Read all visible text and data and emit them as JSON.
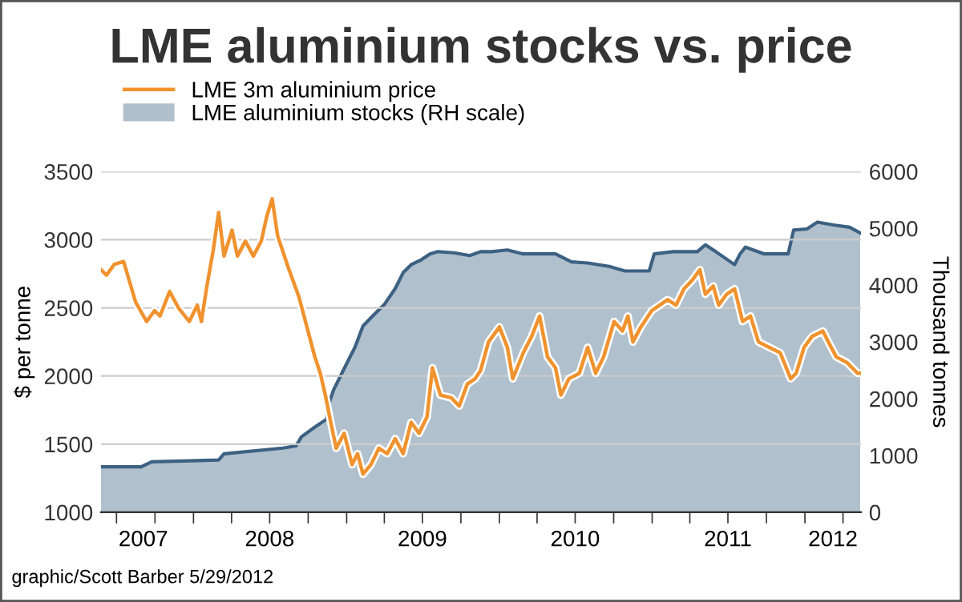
{
  "chart_data": {
    "type": "line",
    "title": "LME aluminium stocks vs. price",
    "ylabel": "$ per tonne",
    "y2label": "Thousand tonnes",
    "annotations": [
      "graphic/Scott Barber 5/29/2012"
    ],
    "series": [
      {
        "name": "LME aluminium stocks (RH scale)",
        "type": "area",
        "axis": "y2",
        "color": "#3d6182",
        "x": [
          "2007-05-25",
          "2007-08-29",
          "2007-09-23",
          "2008-03-01",
          "2008-03-14",
          "2008-08-01",
          "2008-09-02",
          "2008-09-15",
          "2008-10-17",
          "2008-11-14",
          "2008-11-18",
          "2008-12-01",
          "2008-12-26",
          "2009-01-21",
          "2009-02-09",
          "2009-03-06",
          "2009-04-01",
          "2009-04-27",
          "2009-05-16",
          "2009-06-04",
          "2009-06-29",
          "2009-07-19",
          "2009-08-07",
          "2009-09-14",
          "2009-10-22",
          "2009-11-17",
          "2009-12-13",
          "2010-01-20",
          "2010-02-27",
          "2010-04-19",
          "2010-05-15",
          "2010-06-22",
          "2010-07-31",
          "2010-09-20",
          "2010-10-28",
          "2010-12-25",
          "2011-01-06",
          "2011-02-20",
          "2011-04-19",
          "2011-05-08",
          "2011-06-02",
          "2011-07-17",
          "2011-07-30",
          "2011-08-12",
          "2011-09-26",
          "2011-11-22",
          "2011-12-05",
          "2012-01-06",
          "2012-01-31",
          "2012-03-09",
          "2012-04-17",
          "2012-05-12"
        ],
        "values": [
          800,
          800,
          890,
          920,
          1030,
          1130,
          1170,
          1330,
          1500,
          1640,
          1880,
          2160,
          2530,
          2910,
          3280,
          3470,
          3660,
          3940,
          4220,
          4360,
          4450,
          4550,
          4590,
          4570,
          4520,
          4590,
          4590,
          4620,
          4550,
          4550,
          4550,
          4410,
          4390,
          4330,
          4250,
          4250,
          4550,
          4590,
          4590,
          4710,
          4590,
          4360,
          4550,
          4670,
          4550,
          4550,
          4970,
          4990,
          5110,
          5060,
          5020,
          4920
        ]
      },
      {
        "name": "LME 3m aluminium price",
        "color": "#f0922e",
        "x": [
          "2007-05-25",
          "2007-06-07",
          "2007-06-26",
          "2007-07-18",
          "2007-08-16",
          "2007-09-11",
          "2007-09-30",
          "2007-10-13",
          "2007-11-05",
          "2007-11-26",
          "2007-12-22",
          "2008-01-10",
          "2008-01-20",
          "2008-02-02",
          "2008-02-17",
          "2008-03-01",
          "2008-03-14",
          "2008-04-02",
          "2008-04-15",
          "2008-05-04",
          "2008-05-23",
          "2008-06-11",
          "2008-06-24",
          "2008-07-07",
          "2008-07-20",
          "2008-08-14",
          "2008-09-09",
          "2008-09-28",
          "2008-10-17",
          "2008-10-30",
          "2008-11-11",
          "2008-11-24",
          "2008-12-07",
          "2008-12-26",
          "2009-01-14",
          "2009-01-27",
          "2009-02-09",
          "2009-02-28",
          "2009-03-19",
          "2009-04-08",
          "2009-04-27",
          "2009-05-16",
          "2009-06-04",
          "2009-06-23",
          "2009-07-12",
          "2009-07-25",
          "2009-08-13",
          "2009-09-08",
          "2009-09-27",
          "2009-10-16",
          "2009-11-04",
          "2009-11-17",
          "2009-12-06",
          "2010-01-01",
          "2010-01-20",
          "2010-02-02",
          "2010-02-27",
          "2010-03-19",
          "2010-04-07",
          "2010-04-26",
          "2010-05-15",
          "2010-05-28",
          "2010-06-16",
          "2010-07-11",
          "2010-07-31",
          "2010-08-19",
          "2010-09-07",
          "2010-10-02",
          "2010-10-22",
          "2010-11-04",
          "2010-11-16",
          "2010-12-05",
          "2010-12-31",
          "2011-01-19",
          "2011-02-07",
          "2011-02-27",
          "2011-03-18",
          "2011-04-06",
          "2011-04-25",
          "2011-05-08",
          "2011-05-27",
          "2011-06-09",
          "2011-06-28",
          "2011-07-17",
          "2011-08-05",
          "2011-08-24",
          "2011-09-12",
          "2011-10-08",
          "2011-11-03",
          "2011-11-28",
          "2011-12-11",
          "2011-12-30",
          "2012-01-18",
          "2012-02-13",
          "2012-02-26",
          "2012-03-16",
          "2012-04-10",
          "2012-05-06",
          "2012-05-12"
        ],
        "values": [
          2780,
          2740,
          2820,
          2840,
          2540,
          2400,
          2480,
          2440,
          2620,
          2500,
          2400,
          2520,
          2400,
          2660,
          2920,
          3200,
          2880,
          3070,
          2880,
          2990,
          2880,
          2990,
          3170,
          3300,
          3030,
          2800,
          2580,
          2360,
          2140,
          2020,
          1860,
          1660,
          1470,
          1580,
          1350,
          1430,
          1280,
          1350,
          1470,
          1430,
          1540,
          1430,
          1660,
          1580,
          1700,
          2060,
          1860,
          1840,
          1780,
          1940,
          1980,
          2040,
          2250,
          2360,
          2210,
          1980,
          2170,
          2290,
          2440,
          2140,
          2060,
          1860,
          1980,
          2020,
          2210,
          2020,
          2140,
          2400,
          2330,
          2440,
          2250,
          2360,
          2480,
          2520,
          2560,
          2520,
          2640,
          2700,
          2780,
          2600,
          2660,
          2520,
          2600,
          2640,
          2400,
          2440,
          2250,
          2210,
          2170,
          1980,
          2020,
          2210,
          2290,
          2330,
          2250,
          2140,
          2100,
          2020,
          2020
        ]
      }
    ],
    "xlim": [
      "2007-05-25",
      "2012-05-14"
    ],
    "xticks": [
      {
        "value": "2007-07-01",
        "label": null
      },
      {
        "value": "2007-09-03",
        "label": "2007"
      },
      {
        "value": "2007-10-01",
        "label": null
      },
      {
        "value": "2008-01-01",
        "label": null
      },
      {
        "value": "2008-04-01",
        "label": null
      },
      {
        "value": "2008-07-01",
        "label": "2008"
      },
      {
        "value": "2008-07-01",
        "label": null
      },
      {
        "value": "2008-10-01",
        "label": null
      },
      {
        "value": "2009-01-01",
        "label": null
      },
      {
        "value": "2009-04-01",
        "label": null
      },
      {
        "value": "2009-07-01",
        "label": "2009"
      },
      {
        "value": "2009-07-01",
        "label": null
      },
      {
        "value": "2009-10-01",
        "label": null
      },
      {
        "value": "2010-01-01",
        "label": null
      },
      {
        "value": "2010-04-01",
        "label": null
      },
      {
        "value": "2010-07-01",
        "label": "2010"
      },
      {
        "value": "2010-07-01",
        "label": null
      },
      {
        "value": "2010-10-01",
        "label": null
      },
      {
        "value": "2011-01-01",
        "label": null
      },
      {
        "value": "2011-04-01",
        "label": null
      },
      {
        "value": "2011-07-01",
        "label": "2011"
      },
      {
        "value": "2011-07-01",
        "label": null
      },
      {
        "value": "2011-10-01",
        "label": null
      },
      {
        "value": "2012-01-01",
        "label": null
      },
      {
        "value": "2012-03-08",
        "label": "2012"
      },
      {
        "value": "2012-04-01",
        "label": null
      }
    ],
    "ylim": [
      1000,
      3500
    ],
    "yticks": [
      1000,
      1500,
      2000,
      2500,
      3000,
      3500
    ],
    "y2lim": [
      0,
      6000
    ],
    "y2ticks": [
      0,
      1000,
      2000,
      3000,
      4000,
      5000,
      6000
    ],
    "grid": "y",
    "legend": "top left",
    "marker": "none",
    "line_style": "solid"
  }
}
